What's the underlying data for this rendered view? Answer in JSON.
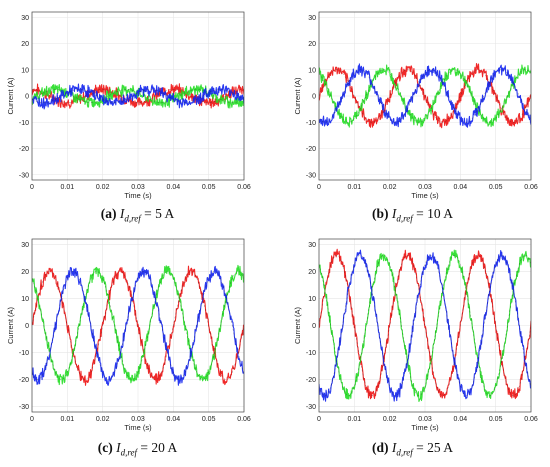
{
  "chart_data": [
    {
      "type": "line",
      "caption": {
        "letter": "(a)",
        "var": "I",
        "sub": "d,ref",
        "rest": " = 5 A"
      },
      "xlabel": "Time (s)",
      "ylabel": "Current (A)",
      "xlim": [
        0,
        0.06
      ],
      "ylim": [
        -32,
        32
      ],
      "xticks": [
        "0",
        "0.01",
        "0.02",
        "0.03",
        "0.04",
        "0.05",
        "0.06"
      ],
      "yticks": [
        "30",
        "20",
        "10",
        "0",
        "-10",
        "-20",
        "-30"
      ],
      "grid": true,
      "frequency_hz": 50,
      "series": [
        {
          "color": "#ee1111",
          "amplitude": 2.5,
          "phase_deg": 90
        },
        {
          "color": "#22dd22",
          "amplitude": 2.5,
          "phase_deg": -30
        },
        {
          "color": "#1122ee",
          "amplitude": 2.5,
          "phase_deg": 210
        }
      ]
    },
    {
      "type": "line",
      "caption": {
        "letter": "(b)",
        "var": "I",
        "sub": "d,ref",
        "rest": " = 10 A"
      },
      "xlabel": "Time (s)",
      "ylabel": "Current (A)",
      "xlim": [
        0,
        0.06
      ],
      "ylim": [
        -32,
        32
      ],
      "xticks": [
        "0",
        "0.01",
        "0.02",
        "0.03",
        "0.04",
        "0.05",
        "0.06"
      ],
      "yticks": [
        "30",
        "20",
        "10",
        "0",
        "-10",
        "-20",
        "-30"
      ],
      "grid": true,
      "frequency_hz": 50,
      "series": [
        {
          "color": "#ee1111",
          "amplitude": 10,
          "phase_deg": 0
        },
        {
          "color": "#22dd22",
          "amplitude": 10,
          "phase_deg": 120
        },
        {
          "color": "#1122ee",
          "amplitude": 10,
          "phase_deg": 240
        }
      ]
    },
    {
      "type": "line",
      "caption": {
        "letter": "(c)",
        "var": "I",
        "sub": "d,ref",
        "rest": " = 20 A"
      },
      "xlabel": "Time (s)",
      "ylabel": "Current (A)",
      "xlim": [
        0,
        0.06
      ],
      "ylim": [
        -32,
        32
      ],
      "xticks": [
        "0",
        "0.01",
        "0.02",
        "0.03",
        "0.04",
        "0.05",
        "0.06"
      ],
      "yticks": [
        "30",
        "20",
        "10",
        "0",
        "-10",
        "-20",
        "-30"
      ],
      "grid": true,
      "frequency_hz": 50,
      "series": [
        {
          "color": "#ee1111",
          "amplitude": 20,
          "phase_deg": 0
        },
        {
          "color": "#22dd22",
          "amplitude": 20,
          "phase_deg": 120
        },
        {
          "color": "#1122ee",
          "amplitude": 20,
          "phase_deg": 240
        }
      ]
    },
    {
      "type": "line",
      "caption": {
        "letter": "(d)",
        "var": "I",
        "sub": "d,ref",
        "rest": " = 25 A"
      },
      "xlabel": "Time (s)",
      "ylabel": "Current (A)",
      "xlim": [
        0,
        0.06
      ],
      "ylim": [
        -32,
        32
      ],
      "xticks": [
        "0",
        "0.01",
        "0.02",
        "0.03",
        "0.04",
        "0.05",
        "0.06"
      ],
      "yticks": [
        "30",
        "20",
        "10",
        "0",
        "-10",
        "-20",
        "-30"
      ],
      "grid": true,
      "frequency_hz": 50,
      "series": [
        {
          "color": "#ee1111",
          "amplitude": 26,
          "phase_deg": 0
        },
        {
          "color": "#22dd22",
          "amplitude": 26,
          "phase_deg": 120
        },
        {
          "color": "#1122ee",
          "amplitude": 26,
          "phase_deg": 240
        }
      ]
    }
  ]
}
